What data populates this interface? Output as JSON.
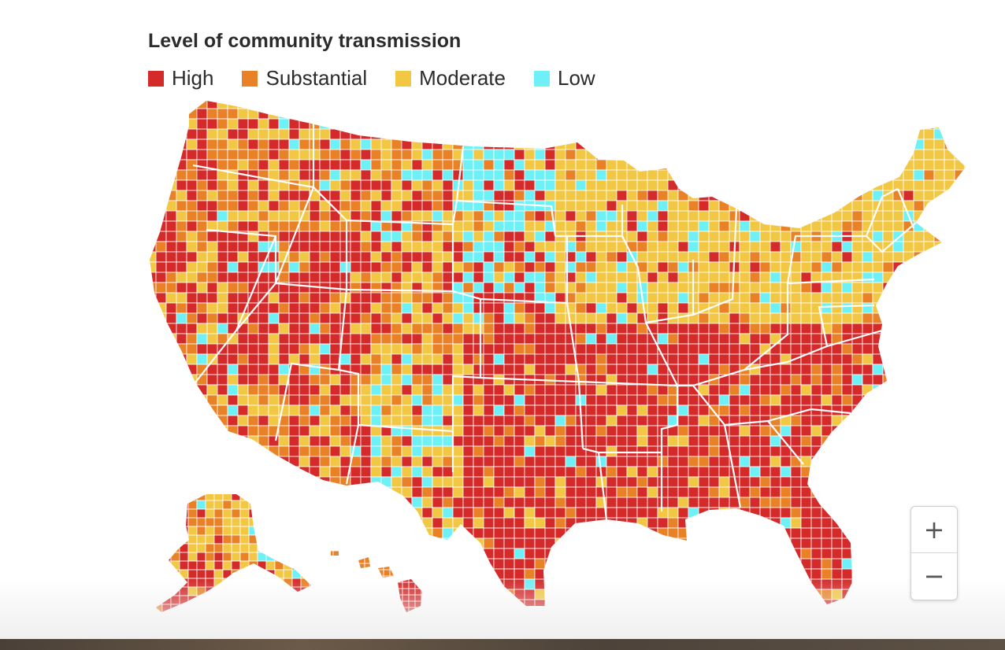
{
  "title": "Level of community transmission",
  "legend": [
    {
      "key": "high",
      "label": "High",
      "color": "#d42a2a"
    },
    {
      "key": "substantial",
      "label": "Substantial",
      "color": "#e98226"
    },
    {
      "key": "moderate",
      "label": "Moderate",
      "color": "#f2c744"
    },
    {
      "key": "low",
      "label": "Low",
      "color": "#6ef0f7"
    }
  ],
  "zoom": {
    "in_label": "+",
    "out_label": "−"
  },
  "borders": {
    "county": "#ffffff",
    "state": "#ffffff"
  }
}
